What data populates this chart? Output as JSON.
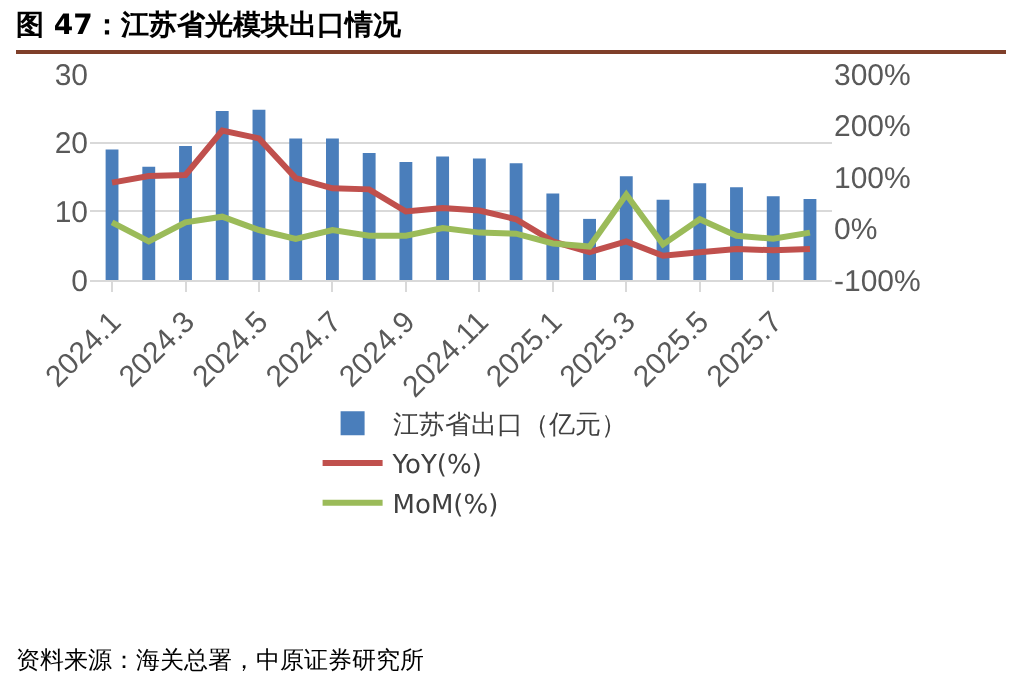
{
  "chart_data": {
    "type": "bar",
    "title": "图 47：江苏省光模块出口情况",
    "categories": [
      "2024.1",
      null,
      "2024.3",
      null,
      "2024.5",
      null,
      "2024.7",
      null,
      "2024.9",
      null,
      "2024.11",
      null,
      "2025.1",
      null,
      "2025.3",
      null,
      "2025.5",
      null,
      "2025.7",
      null
    ],
    "series": [
      {
        "name": "江苏省出口（亿元）",
        "color": "#4a7ebb",
        "values": [
          19.0,
          16.5,
          19.5,
          24.6,
          24.8,
          20.6,
          20.6,
          18.5,
          17.2,
          18.0,
          17.7,
          17.0,
          12.6,
          8.9,
          15.1,
          11.7,
          14.1,
          13.5,
          12.2,
          11.8
        ]
      },
      {
        "name": "YoY(%)",
        "type": "line",
        "axis": "y2",
        "color": "#c0504d",
        "values": [
          89,
          102,
          104,
          190,
          175,
          98,
          78,
          76,
          33,
          40,
          35,
          18,
          -25,
          -46,
          -25,
          -53,
          -46,
          -40,
          -42,
          -40
        ]
      },
      {
        "name": "MoM(%)",
        "type": "line",
        "axis": "y2",
        "color": "#9bbb59",
        "values": [
          12,
          -25,
          12,
          23,
          -3,
          -20,
          -3,
          -14,
          -14,
          1,
          -8,
          -10,
          -29,
          -35,
          66,
          -31,
          18,
          -14,
          -20,
          -8
        ]
      }
    ],
    "ylim": [
      0,
      30
    ],
    "yticks": [
      0,
      10,
      20,
      30
    ],
    "y2lim": [
      -100,
      300
    ],
    "y2ticks": [
      {
        "value": -100,
        "label": "-100%"
      },
      {
        "value": 0,
        "label": "0%"
      },
      {
        "value": 100,
        "label": "100%"
      },
      {
        "value": 200,
        "label": "200%"
      },
      {
        "value": 300,
        "label": "300%"
      }
    ],
    "grid": "y",
    "legend": "bottom",
    "marker": "none",
    "line_style": "solid",
    "annotations": [
      "资料来源：海关总署，中原证券研究所"
    ]
  }
}
